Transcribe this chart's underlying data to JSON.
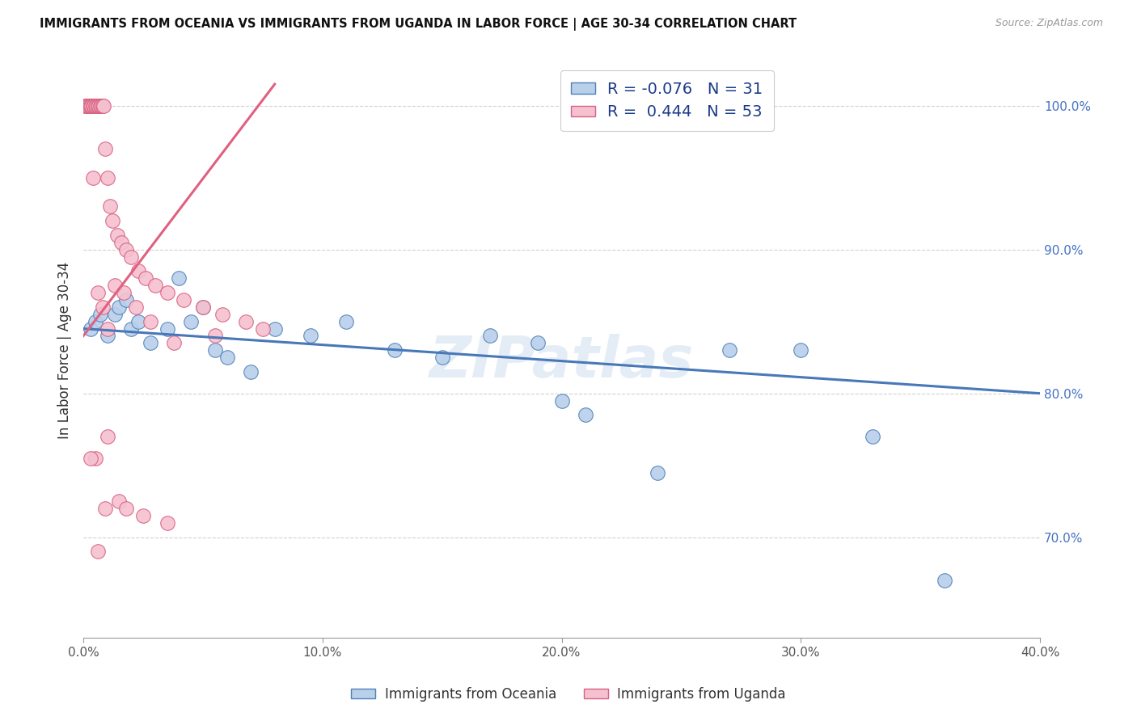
{
  "title": "IMMIGRANTS FROM OCEANIA VS IMMIGRANTS FROM UGANDA IN LABOR FORCE | AGE 30-34 CORRELATION CHART",
  "source": "Source: ZipAtlas.com",
  "ylabel": "In Labor Force | Age 30-34",
  "legend_blue_r": "-0.076",
  "legend_blue_n": "31",
  "legend_pink_r": "0.444",
  "legend_pink_n": "53",
  "blue_color": "#b8d0ea",
  "pink_color": "#f5c0d0",
  "blue_edge_color": "#5080b8",
  "pink_edge_color": "#d86080",
  "blue_line_color": "#4878b8",
  "pink_line_color": "#e06080",
  "watermark": "ZIPatlas",
  "x_min": 0.0,
  "x_max": 40.0,
  "y_min": 63.0,
  "y_max": 103.0,
  "y_ticks": [
    70.0,
    80.0,
    90.0,
    100.0
  ],
  "y_tick_labels": [
    "70.0%",
    "80.0%",
    "90.0%",
    "100.0%"
  ],
  "x_ticks": [
    0,
    10,
    20,
    30,
    40
  ],
  "x_tick_labels": [
    "0.0%",
    "10.0%",
    "20.0%",
    "30.0%",
    "40.0%"
  ],
  "blue_x": [
    0.3,
    0.5,
    0.7,
    1.0,
    1.3,
    1.5,
    1.8,
    2.0,
    2.3,
    2.8,
    3.5,
    4.0,
    4.5,
    5.0,
    5.5,
    6.0,
    7.0,
    8.0,
    9.5,
    11.0,
    13.0,
    15.0,
    17.0,
    19.0,
    21.0,
    24.0,
    27.0,
    30.0,
    33.0,
    36.0,
    20.0
  ],
  "blue_y": [
    84.5,
    85.0,
    85.5,
    84.0,
    85.5,
    86.0,
    86.5,
    84.5,
    85.0,
    83.5,
    84.5,
    88.0,
    85.0,
    86.0,
    83.0,
    82.5,
    81.5,
    84.5,
    84.0,
    85.0,
    83.0,
    82.5,
    84.0,
    83.5,
    78.5,
    74.5,
    83.0,
    83.0,
    77.0,
    67.0,
    79.5
  ],
  "pink_x": [
    0.05,
    0.1,
    0.15,
    0.2,
    0.25,
    0.3,
    0.35,
    0.4,
    0.45,
    0.5,
    0.55,
    0.6,
    0.65,
    0.7,
    0.75,
    0.8,
    0.85,
    0.9,
    1.0,
    1.1,
    1.2,
    1.4,
    1.6,
    1.8,
    2.0,
    2.3,
    2.6,
    3.0,
    3.5,
    4.2,
    5.0,
    5.8,
    6.8,
    7.5,
    0.4,
    0.6,
    0.8,
    1.0,
    1.3,
    1.7,
    2.2,
    2.8,
    3.8,
    5.5,
    0.5,
    0.9,
    1.5,
    2.5,
    3.5,
    0.3,
    0.6,
    1.0,
    1.8
  ],
  "pink_y": [
    100.0,
    100.0,
    100.0,
    100.0,
    100.0,
    100.0,
    100.0,
    100.0,
    100.0,
    100.0,
    100.0,
    100.0,
    100.0,
    100.0,
    100.0,
    100.0,
    100.0,
    97.0,
    95.0,
    93.0,
    92.0,
    91.0,
    90.5,
    90.0,
    89.5,
    88.5,
    88.0,
    87.5,
    87.0,
    86.5,
    86.0,
    85.5,
    85.0,
    84.5,
    95.0,
    87.0,
    86.0,
    84.5,
    87.5,
    87.0,
    86.0,
    85.0,
    83.5,
    84.0,
    75.5,
    72.0,
    72.5,
    71.5,
    71.0,
    75.5,
    69.0,
    77.0,
    72.0
  ],
  "blue_line_x0": 0.0,
  "blue_line_x1": 40.0,
  "blue_line_y0": 84.5,
  "blue_line_y1": 80.0,
  "pink_line_x0": 0.0,
  "pink_line_x1": 8.0,
  "pink_line_y0": 84.0,
  "pink_line_y1": 101.5
}
